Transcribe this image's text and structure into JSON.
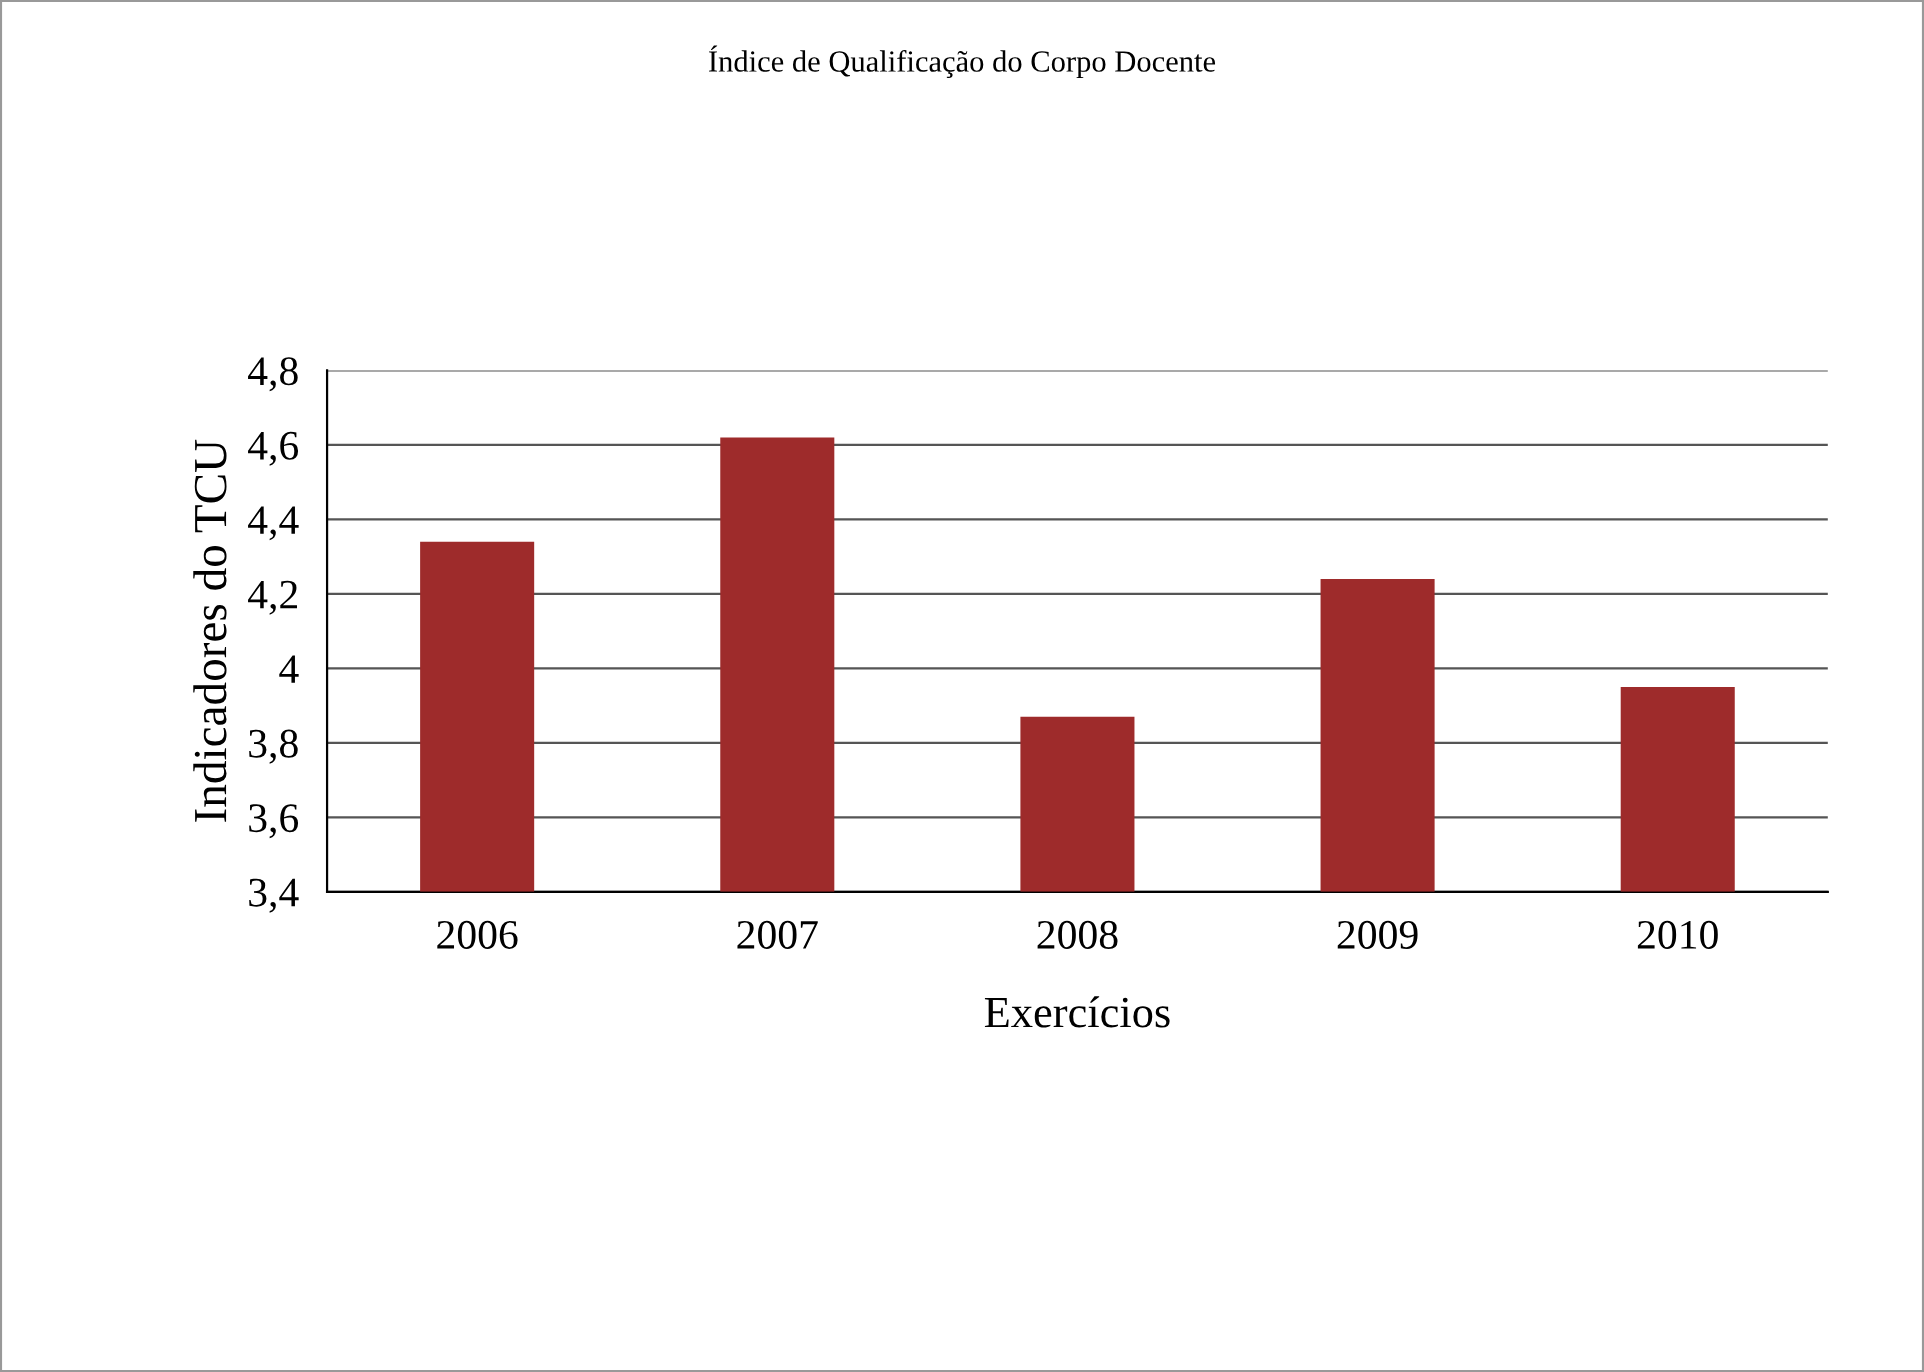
{
  "chart_data": {
    "type": "bar",
    "title": "Índice de Qualificação do Corpo Docente",
    "xlabel": "Exercícios",
    "ylabel": "Indicadores do TCU",
    "categories": [
      "2006",
      "2007",
      "2008",
      "2009",
      "2010"
    ],
    "values": [
      4.34,
      4.62,
      3.87,
      4.24,
      3.95
    ],
    "color": "#9e2b2b",
    "ylim": [
      3.4,
      4.8
    ],
    "yticks": [
      {
        "value": 3.4,
        "label": "3,4"
      },
      {
        "value": 3.6,
        "label": "3,6"
      },
      {
        "value": 3.8,
        "label": "3,8"
      },
      {
        "value": 4.0,
        "label": "4"
      },
      {
        "value": 4.2,
        "label": "4,2"
      },
      {
        "value": 4.4,
        "label": "4,4"
      },
      {
        "value": 4.6,
        "label": "4,6"
      },
      {
        "value": 4.8,
        "label": "4,8"
      }
    ],
    "grid": "y",
    "legend": false
  }
}
